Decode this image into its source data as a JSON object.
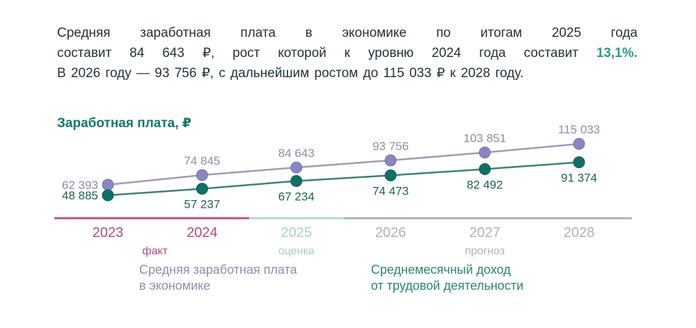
{
  "intro": {
    "line1": "Средняя заработная плата в экономике по итогам 2025 года",
    "line2_before": "составит 84 643 ₽, рост которой к уровню 2024 года составит ",
    "line2_highlight": "13,1%.",
    "line3": "В 2026 году — 93 756 ₽, с дальнейшим ростом до 115 033 ₽ к 2028 году.",
    "highlight_color": "#299c8e",
    "text_color": "#22333b"
  },
  "chart_data": {
    "type": "line",
    "title": "Заработная плата, ₽",
    "title_color": "#10796c",
    "categories": [
      "2023",
      "2024",
      "2025",
      "2026",
      "2027",
      "2028"
    ],
    "series": [
      {
        "name": "Средняя заработная плата в экономике",
        "values": [
          62393,
          74845,
          84643,
          93756,
          103851,
          115033
        ],
        "labels": [
          "62 393",
          "74 845",
          "84 643",
          "93 756",
          "103 851",
          "115 033"
        ],
        "dot_color": "#8986c4",
        "dot_edge": "#7672ae",
        "line_color": "#9e9bb5",
        "label_color": "#8e8ca8",
        "label_side": "above"
      },
      {
        "name": "Среднемесячный доход от трудовой деятельности",
        "values": [
          48885,
          57237,
          67234,
          74473,
          82492,
          91374
        ],
        "labels": [
          "48 885",
          "57 237",
          "67 234",
          "74 473",
          "82 492",
          "91 374"
        ],
        "dot_color": "#0d7265",
        "dot_edge": "#0a5e54",
        "line_color": "#3a8374",
        "label_color": "#1d6257",
        "label_side": "below"
      }
    ],
    "axis_segments": [
      {
        "label": "факт",
        "years": [
          "2023",
          "2024"
        ],
        "line_color": "#c14f82",
        "text_color": "#b34b7b"
      },
      {
        "label": "оценка",
        "years": [
          "2025"
        ],
        "line_color": "#aedcca",
        "text_color": "#a6d3c0"
      },
      {
        "label": "прогноз",
        "years": [
          "2026",
          "2027",
          "2028"
        ],
        "line_color": "#b1b1b5",
        "text_color": "#b1b1b5"
      }
    ],
    "legend": [
      {
        "lines": [
          "Средняя заработная плата",
          "в экономике"
        ],
        "color": "#8b90a9"
      },
      {
        "lines": [
          "Среднемесячный доход",
          "от трудовой деятельности"
        ],
        "color": "#2a8478"
      }
    ],
    "ylim": [
      48885,
      115033
    ],
    "grid": false,
    "legend_position": "bottom",
    "xlabel": "",
    "ylabel": "Заработная плата, ₽"
  }
}
